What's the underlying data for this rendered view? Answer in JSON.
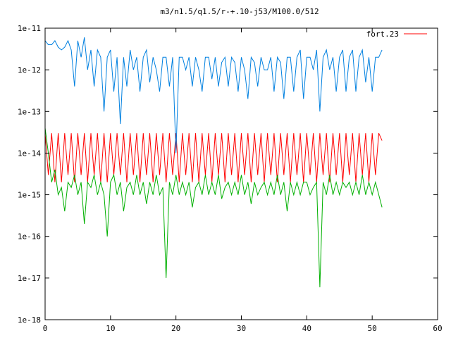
{
  "chart_data": {
    "type": "line",
    "title": "m3/n1.5/q1.5/r-+.10-j53/M100.0/512",
    "xlabel": "",
    "ylabel": "",
    "xlim": [
      0,
      60
    ],
    "ylim": [
      1e-18,
      1e-11
    ],
    "yscale": "log",
    "x_ticks": [
      "0",
      "10",
      "20",
      "30",
      "40",
      "50",
      "60"
    ],
    "y_ticks": [
      "1e-18",
      "1e-17",
      "1e-16",
      "1e-15",
      "1e-14",
      "1e-13",
      "1e-12",
      "1e-11"
    ],
    "legend_position": "top-right",
    "grid": false,
    "series": [
      {
        "name": "fort.23",
        "color": "#ff0000",
        "x": [
          0,
          0.5,
          1.0,
          1.5,
          2.0,
          2.5,
          3.0,
          3.5,
          4.0,
          4.5,
          5.0,
          5.5,
          6.0,
          6.5,
          7.0,
          7.5,
          8.0,
          8.5,
          9.0,
          9.5,
          10.0,
          10.5,
          11.0,
          11.5,
          12.0,
          12.5,
          13.0,
          13.5,
          14.0,
          14.5,
          15.0,
          15.5,
          16.0,
          16.5,
          17.0,
          17.5,
          18.0,
          18.5,
          19.0,
          19.5,
          20.0,
          20.5,
          21.0,
          21.5,
          22.0,
          22.5,
          23.0,
          23.5,
          24.0,
          24.5,
          25.0,
          25.5,
          26.0,
          26.5,
          27.0,
          27.5,
          28.0,
          28.5,
          29.0,
          29.5,
          30.0,
          30.5,
          31.0,
          31.5,
          32.0,
          32.5,
          33.0,
          33.5,
          34.0,
          34.5,
          35.0,
          35.5,
          36.0,
          36.5,
          37.0,
          37.5,
          38.0,
          38.5,
          39.0,
          39.5,
          40.0,
          40.5,
          41.0,
          41.5,
          42.0,
          42.5,
          43.0,
          43.5,
          44.0,
          44.5,
          45.0,
          45.5,
          46.0,
          46.5,
          47.0,
          47.5,
          48.0,
          48.5,
          49.0,
          49.5,
          50.0,
          50.5,
          51.0,
          51.5
        ],
        "y": [
          3e-14,
          3e-15,
          3e-14,
          2e-15,
          3e-14,
          2e-15,
          3e-14,
          3e-15,
          3e-14,
          2e-15,
          3e-14,
          3e-15,
          3e-14,
          2e-15,
          3e-14,
          3e-15,
          3e-14,
          2e-15,
          3e-14,
          2e-15,
          3e-14,
          3e-15,
          3e-14,
          3e-15,
          3e-14,
          2e-15,
          3e-14,
          3e-15,
          3e-14,
          2e-15,
          3e-14,
          3e-15,
          3e-14,
          2e-15,
          3e-14,
          3e-15,
          3e-14,
          2e-15,
          3e-14,
          3e-15,
          3e-14,
          2e-15,
          3e-14,
          3e-15,
          3e-14,
          2e-15,
          3e-14,
          2e-15,
          3e-14,
          3e-15,
          3e-14,
          2e-15,
          3e-14,
          3e-15,
          3e-14,
          2e-15,
          3e-14,
          3e-15,
          3e-14,
          2e-15,
          3e-14,
          3e-15,
          3e-14,
          2e-15,
          3e-14,
          3e-15,
          3e-14,
          2e-15,
          3e-14,
          3e-15,
          3e-14,
          2e-15,
          3e-14,
          3e-15,
          3e-14,
          2e-15,
          3e-14,
          3e-15,
          3e-14,
          2e-15,
          3e-14,
          3e-15,
          3e-14,
          2e-15,
          3e-14,
          3e-15,
          3e-14,
          2e-15,
          3e-14,
          3e-15,
          3e-14,
          2e-15,
          3e-14,
          3e-15,
          3e-14,
          2e-15,
          3e-14,
          3e-15,
          3e-14,
          2e-15,
          3e-14,
          3e-15,
          3e-14,
          2e-14
        ]
      },
      {
        "name": "",
        "color": "#0080e0",
        "x": [
          0,
          0.5,
          1.0,
          1.5,
          2.0,
          2.5,
          3.0,
          3.5,
          4.0,
          4.5,
          5.0,
          5.5,
          6.0,
          6.5,
          7.0,
          7.5,
          8.0,
          8.5,
          9.0,
          9.5,
          10.0,
          10.5,
          11.0,
          11.5,
          12.0,
          12.5,
          13.0,
          13.5,
          14.0,
          14.5,
          15.0,
          15.5,
          16.0,
          16.5,
          17.0,
          17.5,
          18.0,
          18.5,
          19.0,
          19.5,
          20.0,
          20.5,
          21.0,
          21.5,
          22.0,
          22.5,
          23.0,
          23.5,
          24.0,
          24.5,
          25.0,
          25.5,
          26.0,
          26.5,
          27.0,
          27.5,
          28.0,
          28.5,
          29.0,
          29.5,
          30.0,
          30.5,
          31.0,
          31.5,
          32.0,
          32.5,
          33.0,
          33.5,
          34.0,
          34.5,
          35.0,
          35.5,
          36.0,
          36.5,
          37.0,
          37.5,
          38.0,
          38.5,
          39.0,
          39.5,
          40.0,
          40.5,
          41.0,
          41.5,
          42.0,
          42.5,
          43.0,
          43.5,
          44.0,
          44.5,
          45.0,
          45.5,
          46.0,
          46.5,
          47.0,
          47.5,
          48.0,
          48.5,
          49.0,
          49.5,
          50.0,
          50.5,
          51.0,
          51.5
        ],
        "y": [
          5e-12,
          4e-12,
          4e-12,
          5e-12,
          3.5e-12,
          3e-12,
          3.5e-12,
          5e-12,
          3e-12,
          4e-13,
          5e-12,
          2e-12,
          6e-12,
          1e-12,
          3e-12,
          4e-13,
          3e-12,
          2e-12,
          1e-13,
          2e-12,
          3e-12,
          3e-13,
          2e-12,
          5e-14,
          2e-12,
          4e-13,
          3e-12,
          1e-12,
          2e-12,
          3e-13,
          2e-12,
          3e-12,
          5e-13,
          2e-12,
          1e-12,
          3e-13,
          2e-12,
          2e-12,
          4e-13,
          2e-12,
          1e-14,
          2e-12,
          2e-12,
          1e-12,
          2e-12,
          4e-13,
          2e-12,
          1e-12,
          3e-13,
          2e-12,
          2e-12,
          6e-13,
          2e-12,
          4e-13,
          1.5e-12,
          2e-12,
          4e-13,
          2e-12,
          1.5e-12,
          3e-13,
          2e-12,
          1e-12,
          2e-13,
          2e-12,
          1.5e-12,
          4e-13,
          2e-12,
          1e-12,
          1e-12,
          2e-12,
          3e-13,
          2e-12,
          1.5e-12,
          2e-13,
          2e-12,
          2e-12,
          3e-13,
          2e-12,
          3e-12,
          2e-13,
          2e-12,
          2e-12,
          1e-12,
          3e-12,
          1e-13,
          2e-12,
          3e-12,
          1e-12,
          2e-12,
          3e-13,
          2e-12,
          3e-12,
          3e-13,
          2e-12,
          3e-12,
          3e-13,
          2e-12,
          3e-12,
          5e-13,
          2e-12,
          3e-13,
          2e-12,
          2e-12,
          3e-12
        ]
      },
      {
        "name": "",
        "color": "#00b000",
        "x": [
          0,
          0.5,
          1.0,
          1.5,
          2.0,
          2.5,
          3.0,
          3.5,
          4.0,
          4.5,
          5.0,
          5.5,
          6.0,
          6.5,
          7.0,
          7.5,
          8.0,
          8.5,
          9.0,
          9.5,
          10.0,
          10.5,
          11.0,
          11.5,
          12.0,
          12.5,
          13.0,
          13.5,
          14.0,
          14.5,
          15.0,
          15.5,
          16.0,
          16.5,
          17.0,
          17.5,
          18.0,
          18.5,
          19.0,
          19.5,
          20.0,
          20.5,
          21.0,
          21.5,
          22.0,
          22.5,
          23.0,
          23.5,
          24.0,
          24.5,
          25.0,
          25.5,
          26.0,
          26.5,
          27.0,
          27.5,
          28.0,
          28.5,
          29.0,
          29.5,
          30.0,
          30.5,
          31.0,
          31.5,
          32.0,
          32.5,
          33.0,
          33.5,
          34.0,
          34.5,
          35.0,
          35.5,
          36.0,
          36.5,
          37.0,
          37.5,
          38.0,
          38.5,
          39.0,
          39.5,
          40.0,
          40.5,
          41.0,
          41.5,
          42.0,
          42.5,
          43.0,
          43.5,
          44.0,
          44.5,
          45.0,
          45.5,
          46.0,
          46.5,
          47.0,
          47.5,
          48.0,
          48.5,
          49.0,
          49.5,
          50.0,
          50.5,
          51.0,
          51.5
        ],
        "y": [
          4e-14,
          1e-14,
          2e-15,
          4e-15,
          1e-15,
          1.5e-15,
          4e-16,
          2e-15,
          1.5e-15,
          3e-15,
          1e-15,
          2e-15,
          2e-16,
          2e-15,
          1.5e-15,
          3e-15,
          1e-15,
          2e-15,
          1e-15,
          1e-16,
          2e-15,
          3e-15,
          1e-15,
          2e-15,
          4e-16,
          1.5e-15,
          2e-15,
          1e-15,
          3e-15,
          1e-15,
          2e-15,
          6e-16,
          2e-15,
          1e-15,
          3e-15,
          1e-15,
          1.5e-15,
          1e-17,
          2e-15,
          1e-15,
          3e-15,
          1e-15,
          2e-15,
          1e-15,
          2e-15,
          5e-16,
          1.5e-15,
          2e-15,
          1e-15,
          3e-15,
          1e-15,
          2e-15,
          1e-15,
          3e-15,
          8e-16,
          1.5e-15,
          2e-15,
          1e-15,
          2e-15,
          1e-15,
          3e-15,
          1e-15,
          2e-15,
          6e-16,
          2e-15,
          1e-15,
          1.5e-15,
          2e-15,
          1e-15,
          2e-15,
          1e-15,
          3e-15,
          1e-15,
          2e-15,
          4e-16,
          2e-15,
          1e-15,
          2e-15,
          1e-15,
          2e-15,
          2e-15,
          1e-15,
          1.5e-15,
          2e-15,
          6e-18,
          2e-15,
          1e-15,
          3e-15,
          1e-15,
          2e-15,
          1e-15,
          2e-15,
          1.5e-15,
          2e-15,
          1e-15,
          2e-15,
          1e-15,
          3e-15,
          1e-15,
          2e-15,
          1e-15,
          2e-15,
          1e-15,
          5e-16
        ]
      }
    ]
  }
}
